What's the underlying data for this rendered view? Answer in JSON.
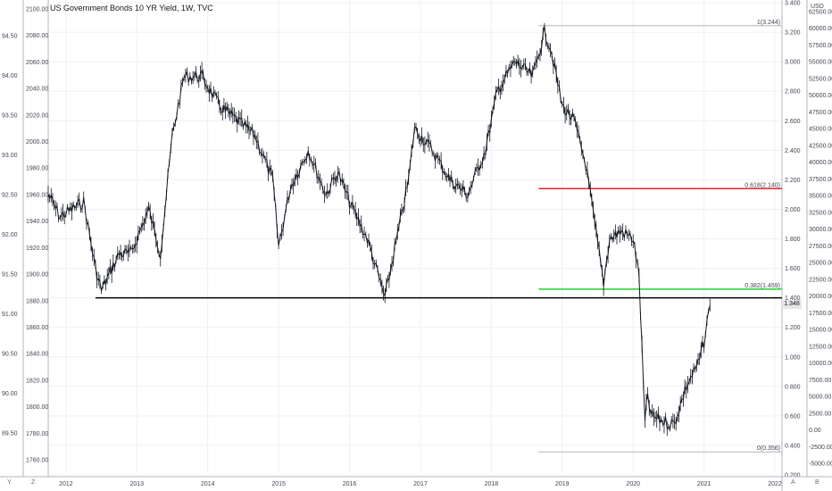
{
  "title": "US Government Bonds 10 YR Yield, 1W, TVC",
  "unit_label": "USD",
  "bottom_keys": [
    "Y",
    "Z",
    "A",
    "B"
  ],
  "last_price_label": "1.348",
  "chart_data": {
    "type": "line",
    "title": "US Government Bonds 10 YR Yield, 1W, TVC",
    "x_labels": [
      "2012",
      "2013",
      "2014",
      "2015",
      "2016",
      "2017",
      "2018",
      "2019",
      "2020",
      "2021",
      "2022"
    ],
    "left_axis_outer": [
      "94.50",
      "94.00",
      "93.50",
      "93.00",
      "92.50",
      "92.00",
      "91.50",
      "91.00",
      "90.50",
      "90.00",
      "89.50"
    ],
    "left_axis_inner": [
      "2100.00",
      "2080.00",
      "2060.00",
      "2040.00",
      "2020.00",
      "2000.00",
      "1980.00",
      "1960.00",
      "1940.00",
      "1920.00",
      "1900.00",
      "1880.00",
      "1860.00",
      "1840.00",
      "1820.00",
      "1800.00",
      "1780.00",
      "1760.00"
    ],
    "right_axis_yield": [
      "3.400",
      "3.200",
      "3.000",
      "2.800",
      "2.600",
      "2.400",
      "2.200",
      "2.000",
      "1.800",
      "1.600",
      "1.400",
      "1.200",
      "1.000",
      "0.800",
      "0.600",
      "0.400",
      "0.200"
    ],
    "right_axis_outer": [
      "62500.00",
      "60000.00",
      "57500.00",
      "55000.00",
      "52500.00",
      "50000.00",
      "47500.00",
      "45000.00",
      "42500.00",
      "40000.00",
      "37500.00",
      "35000.00",
      "32500.00",
      "30000.00",
      "27500.00",
      "25000.00",
      "22500.00",
      "20000.00",
      "17500.00",
      "15000.00",
      "12500.00",
      "10000.00",
      "7500.00",
      "5000.00",
      "2500.00",
      "0.00",
      "-2500.00",
      "-5000.00"
    ],
    "series": [
      {
        "x": [
          "2011-10",
          "2011-12",
          "2012-02",
          "2012-04",
          "2012-06",
          "2012-07",
          "2012-10",
          "2012-12",
          "2013-03",
          "2013-05",
          "2013-07",
          "2013-09",
          "2013-12",
          "2014-03",
          "2014-06",
          "2014-09",
          "2014-12",
          "2015-01",
          "2015-03",
          "2015-06",
          "2015-09",
          "2015-11",
          "2016-01",
          "2016-04",
          "2016-07",
          "2016-11",
          "2016-12",
          "2017-03",
          "2017-06",
          "2017-09",
          "2017-12",
          "2018-02",
          "2018-05",
          "2018-08",
          "2018-10",
          "2018-11",
          "2019-01",
          "2019-03",
          "2019-05",
          "2019-08",
          "2019-09",
          "2019-11",
          "2020-01",
          "2020-02",
          "2020-03",
          "2020-03-15",
          "2020-04",
          "2020-07",
          "2020-08",
          "2020-10",
          "2020-12",
          "2021-01",
          "2021-02"
        ],
        "y": [
          2.1,
          1.95,
          2.0,
          2.05,
          1.6,
          1.45,
          1.7,
          1.7,
          2.0,
          1.7,
          2.5,
          2.9,
          2.9,
          2.7,
          2.6,
          2.5,
          2.2,
          1.75,
          2.15,
          2.4,
          2.1,
          2.25,
          2.05,
          1.8,
          1.4,
          2.2,
          2.55,
          2.4,
          2.2,
          2.1,
          2.4,
          2.8,
          3.0,
          2.9,
          3.2,
          3.1,
          2.7,
          2.6,
          2.3,
          1.5,
          1.8,
          1.85,
          1.8,
          1.55,
          0.55,
          0.75,
          0.6,
          0.55,
          0.55,
          0.8,
          0.95,
          1.1,
          1.35
        ]
      }
    ],
    "horizontal_lines": [
      {
        "label": "",
        "value": 1.4,
        "color": "#000000",
        "x_start": "2012-06"
      },
      {
        "label": "0.618(2.140)",
        "value": 2.14,
        "color": "#e3272f",
        "x_start": "2018-09"
      },
      {
        "label": "0.382(1.459)",
        "value": 1.459,
        "color": "#22d22b",
        "x_start": "2018-09"
      },
      {
        "label": "1(3.244)",
        "value": 3.244,
        "color": "#b2b5be",
        "x_start": "2018-09"
      },
      {
        "label": "0(0.356)",
        "value": 0.356,
        "color": "#b2b5be",
        "x_start": "2018-09"
      }
    ],
    "ylim": [
      0.2,
      3.4
    ],
    "grid": true,
    "colors": {
      "line": "#131722",
      "fib_red": "#e3272f",
      "fib_green": "#22d22b",
      "fib_grey": "#b2b5be"
    }
  }
}
